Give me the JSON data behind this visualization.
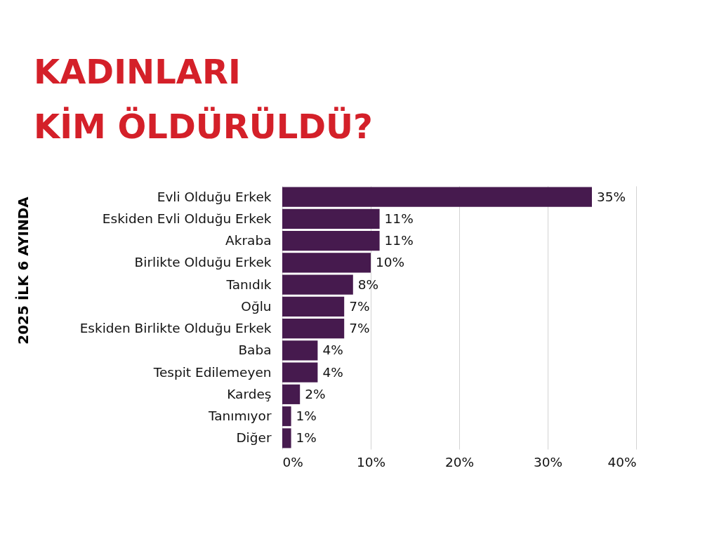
{
  "chart_data": {
    "type": "bar",
    "orientation": "horizontal",
    "title": "KADINLARI\nKİM ÖLDÜRÜLDÜ?",
    "ylabel": "2025 İLK 6 AYINDA",
    "categories": [
      "Evli Olduğu Erkek",
      "Eskiden Evli Olduğu Erkek",
      "Akraba",
      "Birlikte Olduğu Erkek",
      "Tanıdık",
      "Oğlu",
      "Eskiden Birlikte Olduğu Erkek",
      "Baba",
      "Tespit Edilemeyen",
      "Kardeş",
      "Tanımıyor",
      "Diğer"
    ],
    "values": [
      35,
      11,
      11,
      10,
      8,
      7,
      7,
      4,
      4,
      2,
      1,
      1
    ],
    "value_labels": [
      "35%",
      "11%",
      "11%",
      "10%",
      "8%",
      "7%",
      "7%",
      "4%",
      "4%",
      "2%",
      "1%",
      "1%"
    ],
    "color": "#461a4e",
    "xlim": [
      0,
      40
    ],
    "xticks": [
      {
        "value": 0,
        "label": "0%"
      },
      {
        "value": 10,
        "label": "10%"
      },
      {
        "value": 20,
        "label": "20%"
      },
      {
        "value": 30,
        "label": "30%"
      },
      {
        "value": 40,
        "label": "40%"
      }
    ],
    "grid": "x"
  }
}
